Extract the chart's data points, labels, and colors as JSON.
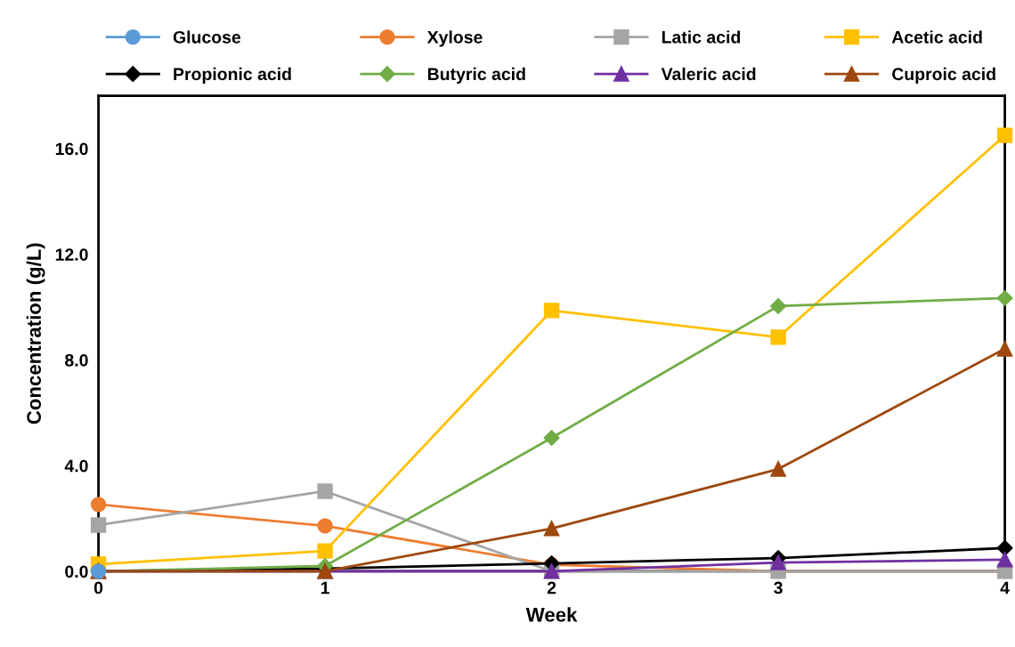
{
  "chart_data": {
    "type": "line",
    "xlabel": "Week",
    "ylabel": "Concentration (g/L)",
    "x": [
      0,
      1,
      2,
      3,
      4
    ],
    "xlim": [
      0,
      4
    ],
    "xticks": [
      0,
      1,
      2,
      3,
      4
    ],
    "ylim": [
      0,
      18
    ],
    "yticks": [
      {
        "value": 0,
        "label": "0.0"
      },
      {
        "value": 4,
        "label": "4.0"
      },
      {
        "value": 8,
        "label": "8.0"
      },
      {
        "value": 12,
        "label": "12.0"
      },
      {
        "value": 16,
        "label": "16.0"
      }
    ],
    "grid": false,
    "legend": "top",
    "line_style": "solid",
    "series": [
      {
        "name": "Glucose",
        "color": "#5b9bd5",
        "marker": "circle",
        "values": [
          0,
          null,
          null,
          null,
          null
        ]
      },
      {
        "name": "Xylose",
        "color": "#ed7d31",
        "marker": "circle",
        "values": [
          2.53,
          1.72,
          0.25,
          0,
          0
        ]
      },
      {
        "name": "Latic acid",
        "color": "#a5a5a5",
        "marker": "square",
        "values": [
          1.75,
          3.03,
          0,
          0,
          0
        ]
      },
      {
        "name": "Acetic acid",
        "color": "#ffc000",
        "marker": "square",
        "values": [
          0.27,
          0.77,
          9.87,
          8.86,
          16.5
        ]
      },
      {
        "name": "Propionic acid",
        "color": "#000000",
        "marker": "diamond",
        "values": [
          0,
          0.1,
          0.3,
          0.5,
          0.88
        ]
      },
      {
        "name": "Butyric acid",
        "color": "#70ad47",
        "marker": "diamond",
        "values": [
          0,
          0.2,
          5.05,
          10.04,
          10.34
        ]
      },
      {
        "name": "Valeric acid",
        "color": "#7030a0",
        "marker": "triangle",
        "values": [
          0,
          0,
          0,
          0.33,
          0.44
        ]
      },
      {
        "name": "Cuproic acid",
        "color": "#9e480e",
        "marker": "triangle",
        "values": [
          0,
          0,
          1.62,
          3.87,
          8.42
        ]
      }
    ]
  }
}
